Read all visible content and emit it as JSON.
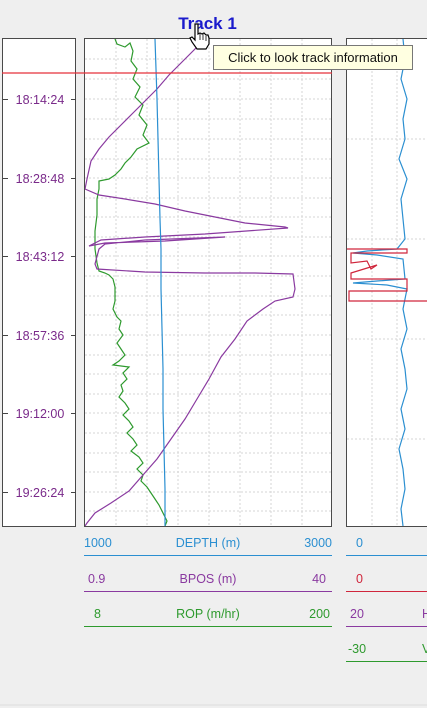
{
  "track": {
    "title": "Track 1",
    "tooltip": "Click to look track information"
  },
  "time_axis": {
    "labels": [
      "18:14:24",
      "18:28:48",
      "18:43:12",
      "18:57:36",
      "19:12:00",
      "19:26:24"
    ]
  },
  "track1_scales": [
    {
      "left": "1000",
      "name": "DEPTH (m)",
      "right": "3000",
      "color": "#2b8fd1"
    },
    {
      "left": "0.9",
      "name": "BPOS (m)",
      "right": "40",
      "color": "#8a3aa0"
    },
    {
      "left": "8",
      "name": "ROP (m/hr)",
      "right": "200",
      "color": "#2e9a2e"
    }
  ],
  "track2_scales": [
    {
      "left": "0",
      "color": "#2b8fd1"
    },
    {
      "left": "0",
      "color": "#d0263c"
    },
    {
      "left": "20",
      "extra": "H",
      "color": "#8a3aa0"
    },
    {
      "left": "-30",
      "extra": "V",
      "color": "#2e9a2e"
    }
  ],
  "colors": {
    "depth": "#2b8fd1",
    "bpos": "#8a3aa0",
    "rop": "#2e9a2e",
    "cursor_line": "#e5303a",
    "red_curve": "#d0263c"
  },
  "icons": {
    "cursor": "hand-pointer-icon"
  }
}
